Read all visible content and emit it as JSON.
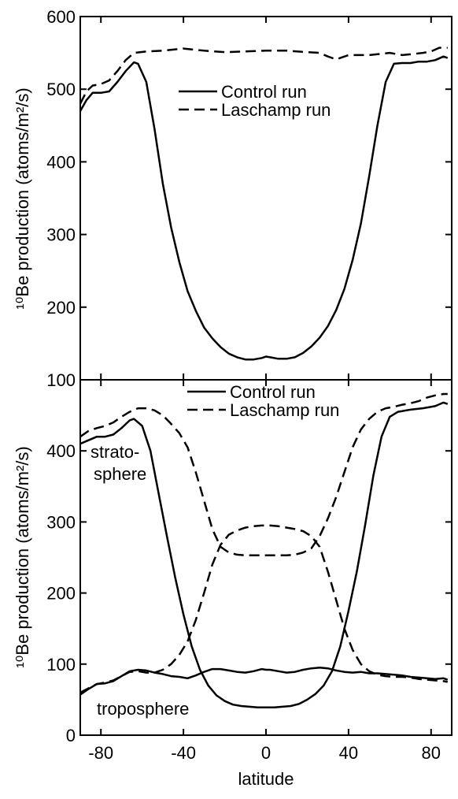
{
  "chart_data": [
    {
      "type": "line",
      "panel": "top",
      "ylabel": "¹⁰Be production (atoms/m²/s)",
      "xlim": [
        -90,
        90
      ],
      "ylim": [
        100,
        600
      ],
      "xticks": [
        -80,
        -40,
        0,
        40,
        80
      ],
      "yticks": [
        100,
        200,
        300,
        400,
        500,
        600
      ],
      "legend": {
        "position": "upper-center",
        "entries": [
          "Control run",
          "Laschamp run"
        ]
      },
      "series": [
        {
          "name": "Control run",
          "style": "solid",
          "x": [
            -90,
            -87,
            -84,
            -80,
            -76,
            -72,
            -68,
            -64,
            -62,
            -58,
            -54,
            -50,
            -46,
            -42,
            -38,
            -34,
            -30,
            -26,
            -22,
            -18,
            -14,
            -10,
            -6,
            -2,
            0,
            2,
            6,
            10,
            14,
            18,
            22,
            26,
            30,
            34,
            38,
            42,
            46,
            50,
            54,
            58,
            62,
            66,
            70,
            74,
            78,
            82,
            86,
            88
          ],
          "y": [
            470,
            485,
            495,
            495,
            497,
            510,
            525,
            537,
            535,
            510,
            445,
            370,
            310,
            262,
            222,
            195,
            172,
            157,
            145,
            136,
            131,
            128,
            128,
            130,
            132,
            131,
            129,
            129,
            131,
            137,
            146,
            158,
            174,
            196,
            225,
            265,
            315,
            380,
            450,
            510,
            535,
            536,
            536,
            538,
            538,
            540,
            545,
            543
          ]
        },
        {
          "name": "Laschamp run",
          "style": "dashed",
          "x": [
            -90,
            -87,
            -84,
            -80,
            -76,
            -72,
            -68,
            -64,
            -58,
            -50,
            -40,
            -30,
            -20,
            -10,
            0,
            10,
            20,
            26,
            30,
            34,
            40,
            50,
            60,
            66,
            70,
            76,
            80,
            84,
            88
          ],
          "y": [
            480,
            497,
            505,
            507,
            512,
            525,
            540,
            550,
            552,
            553,
            556,
            553,
            551,
            552,
            553,
            553,
            551,
            550,
            545,
            541,
            547,
            547,
            550,
            547,
            548,
            550,
            552,
            557,
            557
          ]
        }
      ]
    },
    {
      "type": "line",
      "panel": "bottom",
      "xlabel": "latitude",
      "ylabel": "¹⁰Be production (atoms/m²/s)",
      "xlim": [
        -90,
        90
      ],
      "ylim": [
        0,
        500
      ],
      "xticks": [
        -80,
        -40,
        0,
        40,
        80
      ],
      "yticks": [
        0,
        100,
        200,
        300,
        400
      ],
      "legend": {
        "position": "upper-center",
        "entries": [
          "Control run",
          "Laschamp run"
        ]
      },
      "annotations": [
        "strato-",
        "sphere",
        "troposphere"
      ],
      "series": [
        {
          "name": "Control run",
          "style": "solid",
          "x": [
            -90,
            -86,
            -82,
            -78,
            -74,
            -70,
            -66,
            -64,
            -60,
            -56,
            -52,
            -48,
            -44,
            -40,
            -36,
            -32,
            -28,
            -24,
            -20,
            -16,
            -12,
            -8,
            -4,
            0,
            4,
            8,
            12,
            16,
            20,
            24,
            28,
            32,
            36,
            40,
            44,
            48,
            52,
            56,
            60,
            64,
            70,
            76,
            82,
            86,
            88
          ],
          "y": [
            410,
            415,
            420,
            420,
            423,
            432,
            443,
            445,
            435,
            400,
            340,
            280,
            222,
            170,
            125,
            92,
            70,
            56,
            48,
            43,
            41,
            40,
            39,
            39,
            39,
            40,
            41,
            44,
            50,
            58,
            70,
            90,
            125,
            175,
            230,
            295,
            365,
            420,
            448,
            455,
            458,
            460,
            463,
            468,
            466
          ]
        },
        {
          "name": "Laschamp run",
          "style": "dashed",
          "x": [
            -90,
            -86,
            -82,
            -78,
            -74,
            -70,
            -66,
            -62,
            -58,
            -54,
            -50,
            -46,
            -42,
            -38,
            -34,
            -30,
            -26,
            -22,
            -18,
            -14,
            -10,
            -6,
            -2,
            0,
            2,
            6,
            10,
            14,
            18,
            22,
            26,
            30,
            34,
            38,
            42,
            46,
            50,
            54,
            58,
            62,
            66,
            70,
            74,
            78,
            82,
            86,
            88
          ],
          "y": [
            420,
            428,
            432,
            435,
            440,
            448,
            455,
            460,
            460,
            457,
            450,
            438,
            425,
            405,
            370,
            330,
            290,
            265,
            257,
            254,
            253,
            253,
            253,
            253,
            253,
            253,
            253,
            254,
            257,
            263,
            280,
            305,
            335,
            370,
            405,
            430,
            445,
            455,
            460,
            462,
            465,
            467,
            470,
            475,
            478,
            480,
            480
          ]
        },
        {
          "name": "Control run",
          "style": "solid",
          "x": [
            -90,
            -86,
            -82,
            -78,
            -74,
            -70,
            -66,
            -62,
            -58,
            -54,
            -50,
            -46,
            -42,
            -38,
            -34,
            -30,
            -26,
            -22,
            -18,
            -14,
            -10,
            -6,
            -2,
            0,
            2,
            6,
            10,
            14,
            18,
            22,
            26,
            30,
            34,
            38,
            42,
            46,
            50,
            54,
            58,
            62,
            66,
            70,
            74,
            78,
            82,
            86,
            88
          ],
          "y": [
            57,
            65,
            72,
            73,
            76,
            83,
            90,
            92,
            91,
            88,
            86,
            83,
            82,
            80,
            84,
            89,
            93,
            93,
            91,
            89,
            88,
            90,
            93,
            92,
            92,
            90,
            88,
            89,
            92,
            94,
            95,
            94,
            91,
            89,
            88,
            89,
            87,
            87,
            86,
            85,
            84,
            82,
            81,
            80,
            79,
            80,
            78
          ]
        },
        {
          "name": "Laschamp run",
          "style": "dashed",
          "x": [
            -90,
            -86,
            -82,
            -78,
            -74,
            -70,
            -66,
            -62,
            -58,
            -54,
            -50,
            -46,
            -42,
            -38,
            -34,
            -30,
            -26,
            -22,
            -18,
            -14,
            -10,
            -6,
            -2,
            0,
            2,
            6,
            10,
            14,
            18,
            22,
            26,
            30,
            34,
            38,
            42,
            46,
            50,
            54,
            58,
            62,
            66,
            70,
            74,
            78,
            82,
            86,
            88
          ],
          "y": [
            60,
            66,
            72,
            74,
            77,
            83,
            89,
            90,
            88,
            88,
            92,
            100,
            113,
            132,
            162,
            200,
            240,
            268,
            282,
            288,
            292,
            294,
            295,
            295,
            295,
            294,
            292,
            290,
            287,
            280,
            265,
            230,
            190,
            150,
            120,
            100,
            90,
            85,
            83,
            82,
            82,
            81,
            79,
            78,
            77,
            76,
            75
          ]
        }
      ]
    }
  ]
}
